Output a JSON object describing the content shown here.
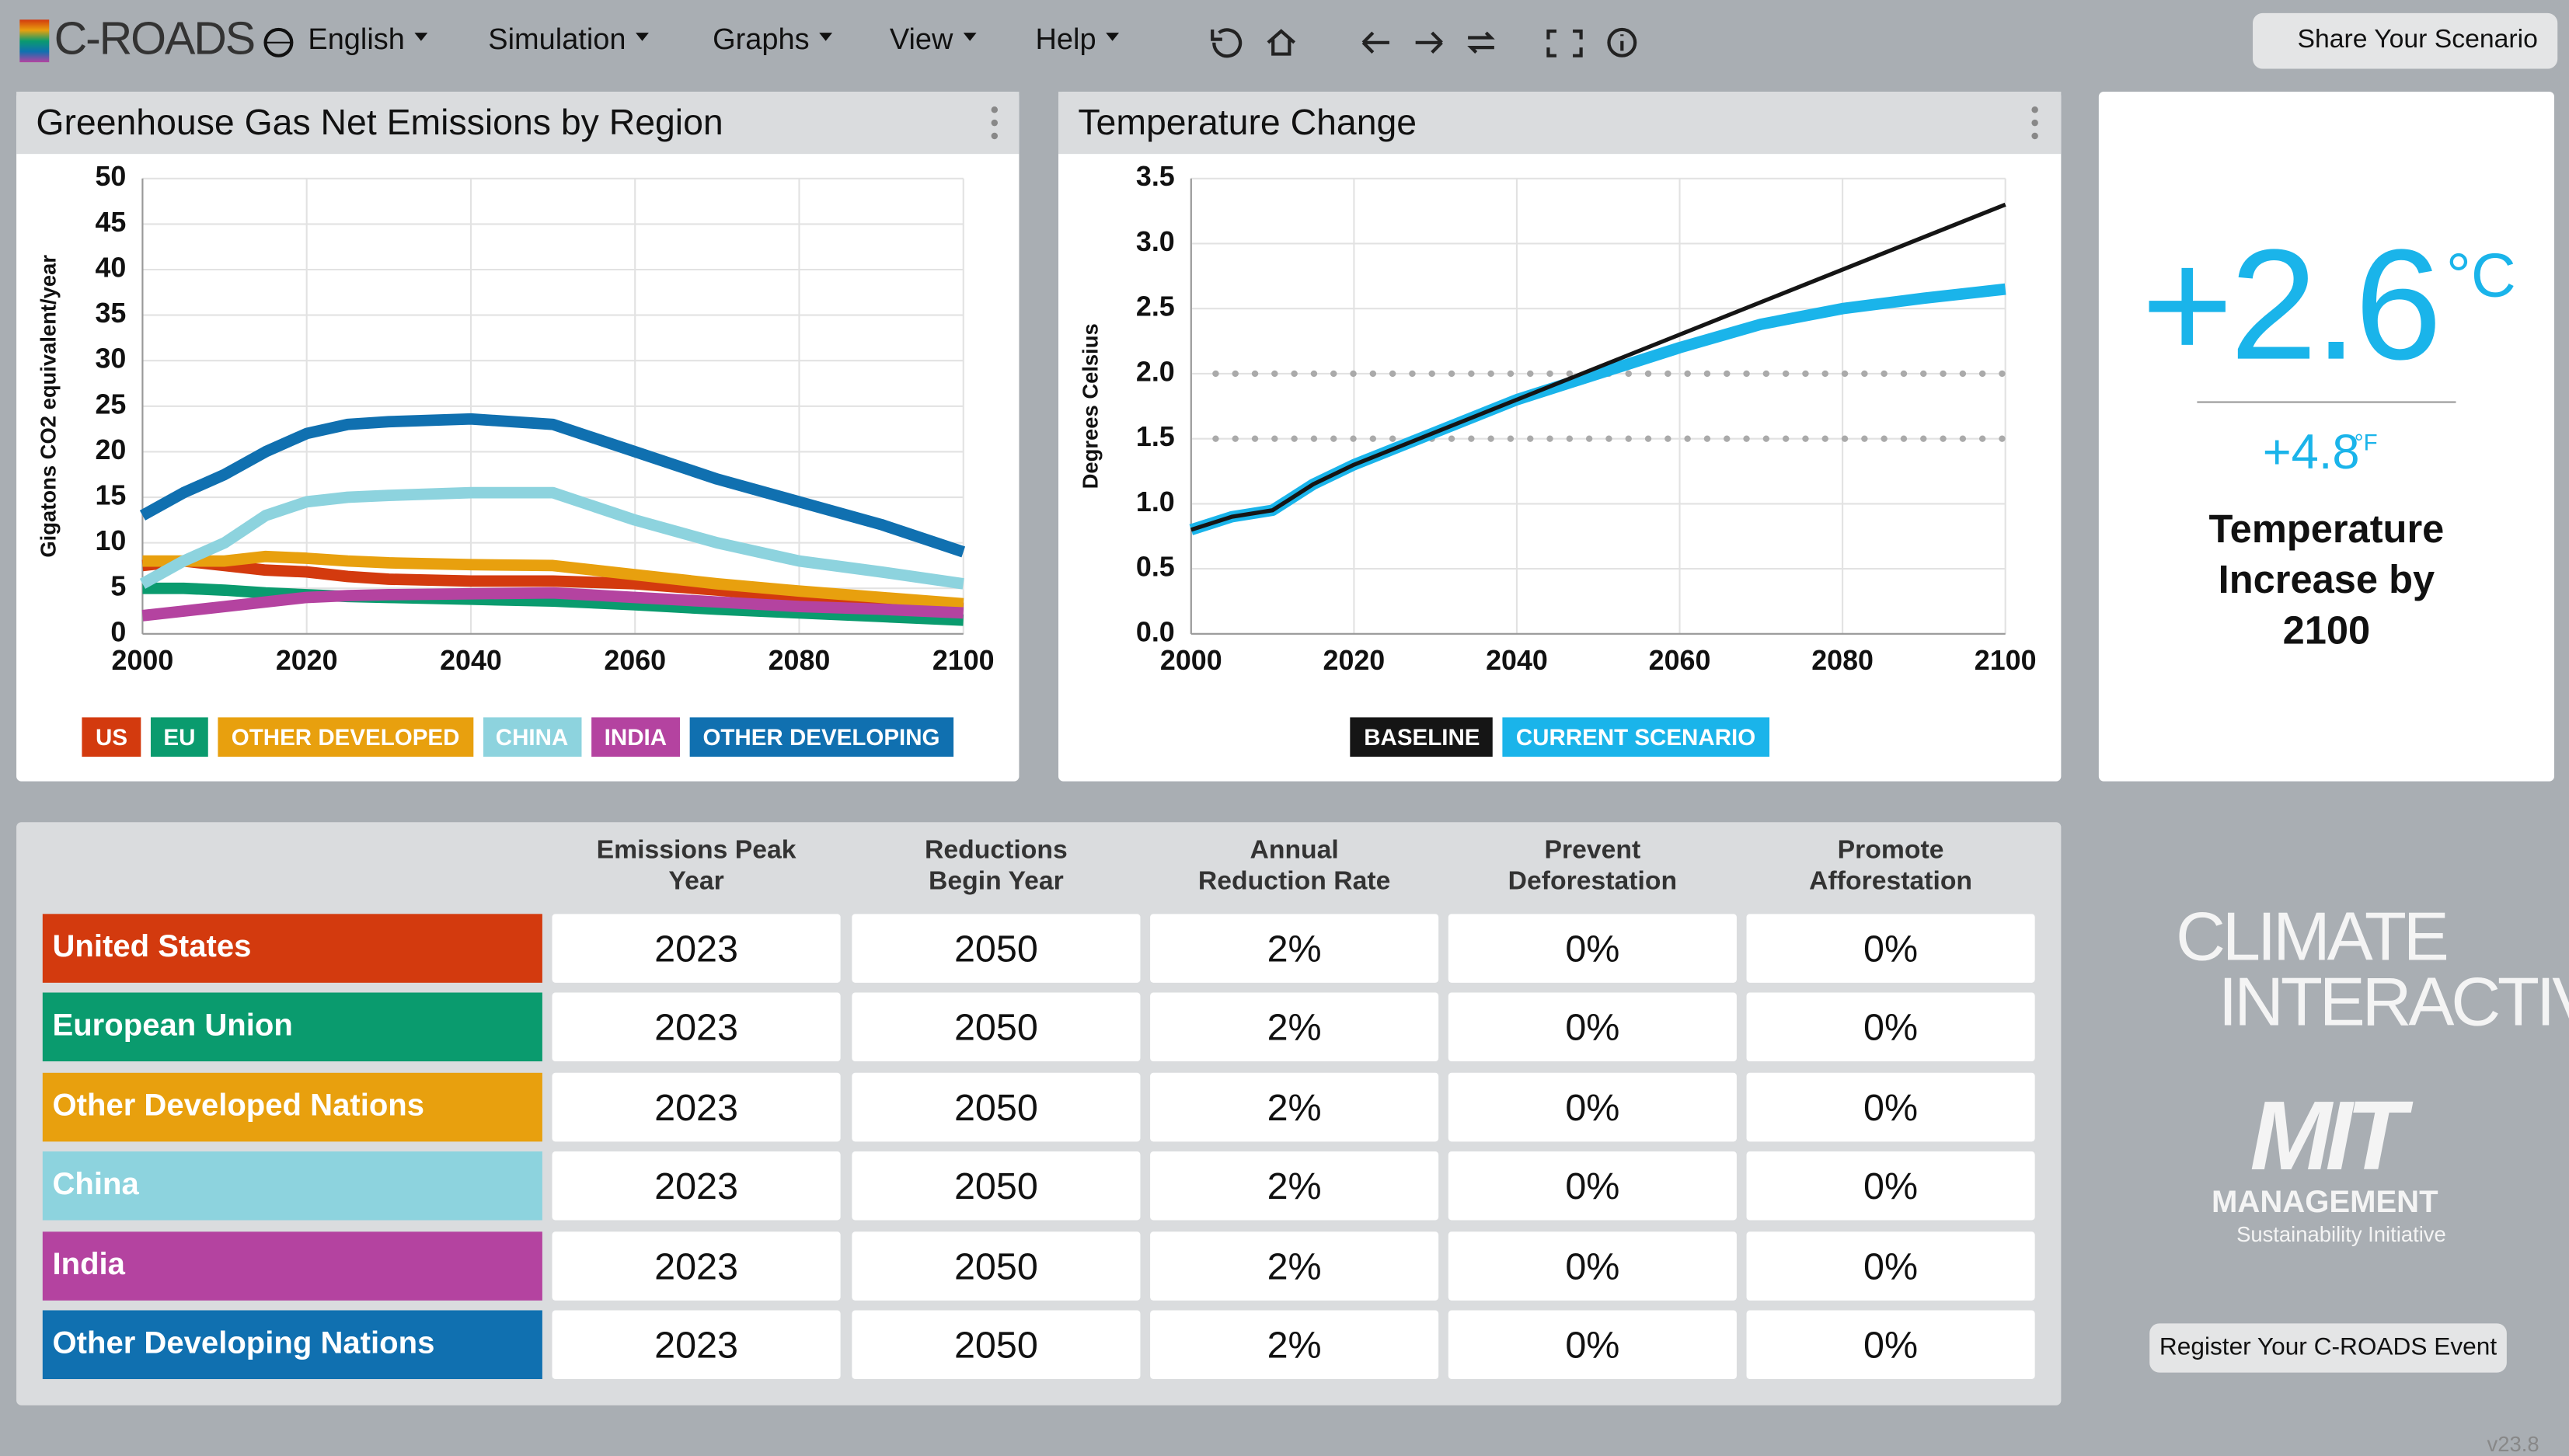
{
  "header": {
    "logo": "C-ROADS",
    "menu": [
      "English",
      "Simulation",
      "Graphs",
      "View",
      "Help"
    ],
    "share": "Share Your Scenario"
  },
  "chart_data": [
    {
      "type": "line",
      "title": "Greenhouse Gas Net Emissions by Region",
      "y_label": "Gigatons CO2 equivalent/year",
      "x": [
        2000,
        2005,
        2010,
        2015,
        2020,
        2025,
        2030,
        2040,
        2050,
        2060,
        2070,
        2080,
        2090,
        2100
      ],
      "xlim": [
        2000,
        2100
      ],
      "xticks": [
        2000,
        2020,
        2040,
        2060,
        2080,
        2100
      ],
      "ylim": [
        0,
        50
      ],
      "yticks": [
        0,
        5,
        10,
        15,
        20,
        25,
        30,
        35,
        40,
        45,
        50
      ],
      "grid": true,
      "series": [
        {
          "name": "US",
          "color": "#d33a0e",
          "values": [
            7.5,
            8,
            7.5,
            7,
            6.8,
            6.3,
            6,
            5.8,
            5.8,
            5.5,
            4.8,
            4,
            3.3,
            2.8
          ]
        },
        {
          "name": "EU",
          "color": "#0a9b6e",
          "values": [
            5,
            5,
            4.8,
            4.5,
            4.3,
            4.1,
            4,
            3.8,
            3.6,
            3.2,
            2.7,
            2.3,
            1.9,
            1.5
          ]
        },
        {
          "name": "OTHER DEVELOPED",
          "color": "#e8a00e",
          "values": [
            8,
            8,
            8,
            8.5,
            8.3,
            8,
            7.8,
            7.6,
            7.5,
            6.5,
            5.5,
            4.7,
            4,
            3.3
          ]
        },
        {
          "name": "CHINA",
          "color": "#8dd3de",
          "values": [
            5.5,
            8,
            10,
            13,
            14.5,
            15,
            15.2,
            15.5,
            15.5,
            12.5,
            10,
            8,
            6.8,
            5.5
          ]
        },
        {
          "name": "INDIA",
          "color": "#b443a0",
          "values": [
            2,
            2.5,
            3,
            3.5,
            4,
            4.2,
            4.3,
            4.4,
            4.5,
            4,
            3.5,
            3,
            2.7,
            2.3
          ]
        },
        {
          "name": "OTHER DEVELOPING",
          "color": "#1070b0",
          "values": [
            13,
            15.5,
            17.5,
            20,
            22,
            23,
            23.3,
            23.6,
            23,
            20,
            17,
            14.5,
            12,
            9
          ]
        }
      ]
    },
    {
      "type": "line",
      "title": "Temperature Change",
      "y_label": "Degrees Celsius",
      "x": [
        2000,
        2005,
        2010,
        2015,
        2020,
        2030,
        2040,
        2050,
        2060,
        2070,
        2080,
        2090,
        2100
      ],
      "xlim": [
        2000,
        2100
      ],
      "xticks": [
        2000,
        2020,
        2040,
        2060,
        2080,
        2100
      ],
      "ylim": [
        0,
        3.5
      ],
      "yticks": [
        {
          "value": 0,
          "label": "0.0"
        },
        {
          "value": 0.5,
          "label": "0.5"
        },
        {
          "value": 1,
          "label": "1.0"
        },
        {
          "value": 1.5,
          "label": "1.5"
        },
        {
          "value": 2,
          "label": "2.0"
        },
        {
          "value": 2.5,
          "label": "2.5"
        },
        {
          "value": 3,
          "label": "3.0"
        },
        {
          "value": 3.5,
          "label": "3.5"
        }
      ],
      "grid": true,
      "reference_lines": [
        1.5,
        2
      ],
      "series": [
        {
          "name": "BASELINE",
          "color": "#151515",
          "values": [
            0.8,
            0.9,
            0.95,
            1.15,
            1.3,
            1.55,
            1.8,
            2.05,
            2.3,
            2.55,
            2.8,
            3.05,
            3.3
          ]
        },
        {
          "name": "CURRENT SCENARIO",
          "color": "#1ab4ea",
          "values": [
            0.8,
            0.9,
            0.95,
            1.15,
            1.3,
            1.55,
            1.8,
            2,
            2.2,
            2.38,
            2.5,
            2.58,
            2.65
          ]
        }
      ]
    }
  ],
  "result": {
    "celsius": "+2.6",
    "celsius_unit": "°C",
    "fahrenheit": "+4.8",
    "fahrenheit_unit": "°F",
    "caption": "Temperature Increase by 2100"
  },
  "table": {
    "columns": [
      "Emissions Peak Year",
      "Reductions Begin Year",
      "Annual Reduction Rate",
      "Prevent Deforestation",
      "Promote Afforestation"
    ],
    "rows": [
      {
        "region": "United States",
        "color": "#d33a0e",
        "cells": [
          "2023",
          "2050",
          "2%",
          "0%",
          "0%"
        ]
      },
      {
        "region": "European Union",
        "color": "#0a9b6e",
        "cells": [
          "2023",
          "2050",
          "2%",
          "0%",
          "0%"
        ]
      },
      {
        "region": "Other Developed Nations",
        "color": "#e8a00e",
        "cells": [
          "2023",
          "2050",
          "2%",
          "0%",
          "0%"
        ]
      },
      {
        "region": "China",
        "color": "#8dd3de",
        "cells": [
          "2023",
          "2050",
          "2%",
          "0%",
          "0%"
        ]
      },
      {
        "region": "India",
        "color": "#b443a0",
        "cells": [
          "2023",
          "2050",
          "2%",
          "0%",
          "0%"
        ]
      },
      {
        "region": "Other Developing Nations",
        "color": "#1070b0",
        "cells": [
          "2023",
          "2050",
          "2%",
          "0%",
          "0%"
        ]
      }
    ]
  },
  "footer": {
    "ci_logo_1": "CLIMATE",
    "ci_logo_2": "INTERACTIVE",
    "mit_logo": "MIT",
    "mit_sub": "MANAGEMENT",
    "mit_sub2": "Sustainability Initiative",
    "register": "Register Your C-ROADS Event",
    "version": "v23.8"
  }
}
